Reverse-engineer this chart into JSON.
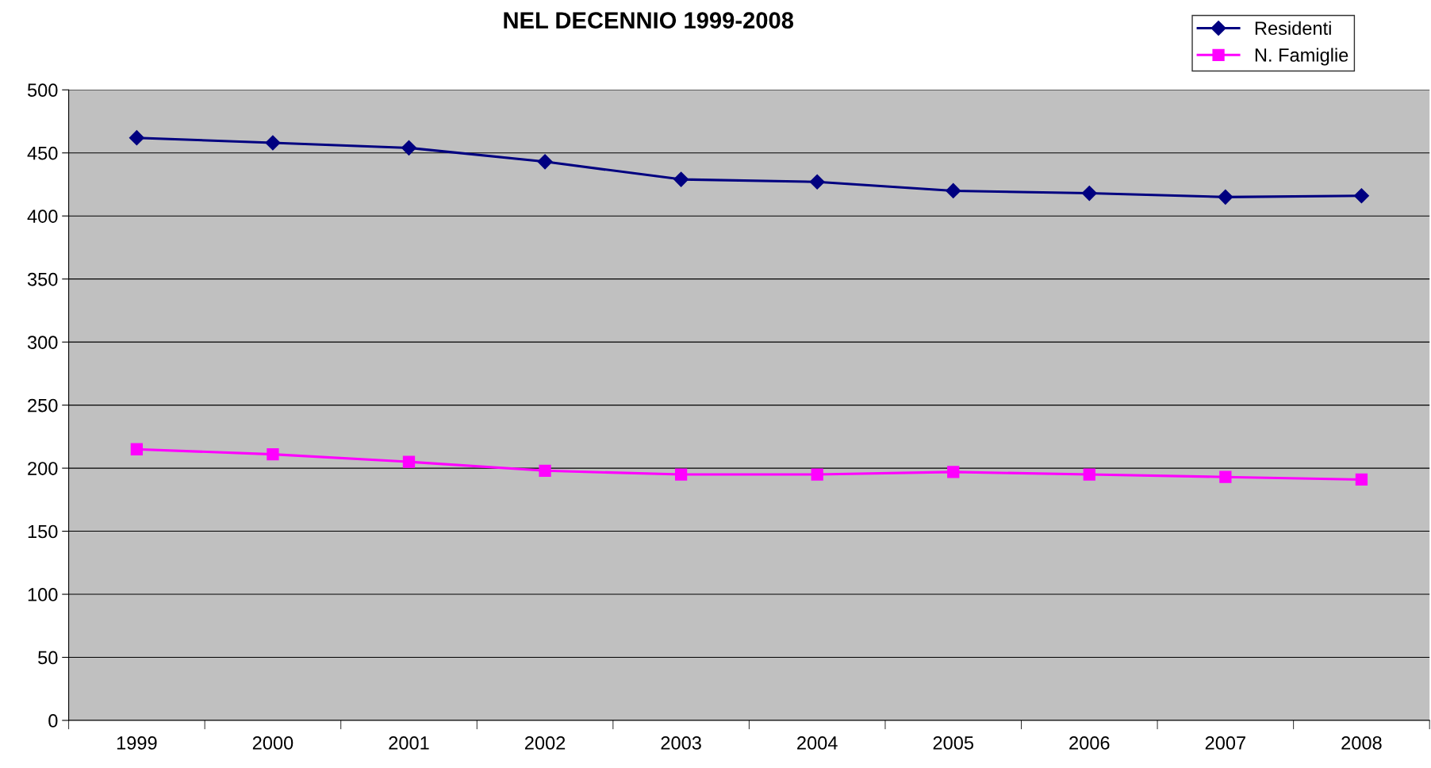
{
  "chart_data": {
    "type": "line",
    "title": "NEL DECENNIO 1999-2008",
    "categories": [
      "1999",
      "2000",
      "2001",
      "2002",
      "2003",
      "2004",
      "2005",
      "2006",
      "2007",
      "2008"
    ],
    "series": [
      {
        "name": "Residenti",
        "color": "#000080",
        "marker": "diamond",
        "values": [
          462,
          458,
          454,
          443,
          429,
          427,
          420,
          418,
          415,
          416
        ]
      },
      {
        "name": "N. Famiglie",
        "color": "#ff00ff",
        "marker": "square",
        "values": [
          215,
          211,
          205,
          198,
          195,
          195,
          197,
          195,
          193,
          191
        ]
      }
    ],
    "ylim": [
      0,
      500
    ],
    "yticks": [
      0,
      50,
      100,
      150,
      200,
      250,
      300,
      350,
      400,
      450,
      500
    ],
    "grid": "y",
    "legend": "top right",
    "line_style": "solid"
  }
}
